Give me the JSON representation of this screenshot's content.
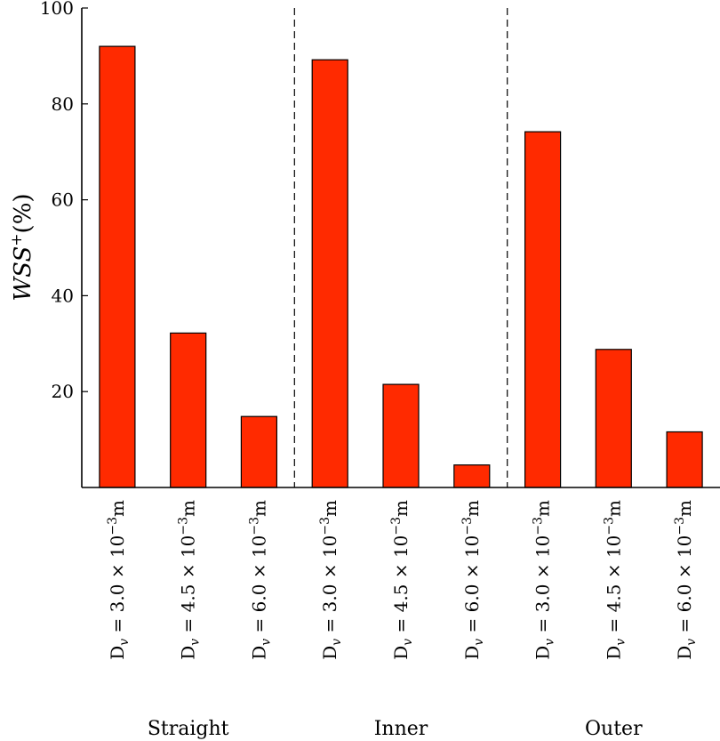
{
  "chart_data": {
    "type": "bar",
    "ylabel": "WSS",
    "ylabel_superscript": "+",
    "ylabel_unit": "(%)",
    "ylim": [
      0,
      100
    ],
    "yticks": [
      20,
      40,
      60,
      80,
      100
    ],
    "bar_color": "#ff2a00",
    "groups": [
      "Straight",
      "Inner",
      "Outer"
    ],
    "categories": [
      "Dv = 3.0 × 10−3m",
      "Dv = 4.5 × 10−3m",
      "Dv = 6.0 × 10−3m",
      "Dv = 3.0 × 10−3m",
      "Dv = 4.5 × 10−3m",
      "Dv = 6.0 × 10−3m",
      "Dv = 3.0 × 10−3m",
      "Dv = 4.5 × 10−3m",
      "Dv = 6.0 × 10−3m"
    ],
    "category_parts": [
      {
        "D": "D",
        "sub": "v",
        "rest": " = 3.0 × 10",
        "exp": "−3",
        "unit": "m"
      },
      {
        "D": "D",
        "sub": "v",
        "rest": " = 4.5 × 10",
        "exp": "−3",
        "unit": "m"
      },
      {
        "D": "D",
        "sub": "v",
        "rest": " = 6.0 × 10",
        "exp": "−3",
        "unit": "m"
      },
      {
        "D": "D",
        "sub": "v",
        "rest": " = 3.0 × 10",
        "exp": "−3",
        "unit": "m"
      },
      {
        "D": "D",
        "sub": "v",
        "rest": " = 4.5 × 10",
        "exp": "−3",
        "unit": "m"
      },
      {
        "D": "D",
        "sub": "v",
        "rest": " = 6.0 × 10",
        "exp": "−3",
        "unit": "m"
      },
      {
        "D": "D",
        "sub": "v",
        "rest": " = 3.0 × 10",
        "exp": "−3",
        "unit": "m"
      },
      {
        "D": "D",
        "sub": "v",
        "rest": " = 4.5 × 10",
        "exp": "−3",
        "unit": "m"
      },
      {
        "D": "D",
        "sub": "v",
        "rest": " = 6.0 × 10",
        "exp": "−3",
        "unit": "m"
      }
    ],
    "values": [
      92,
      32.2,
      14.8,
      89.2,
      21.5,
      4.7,
      74.2,
      28.8,
      11.6
    ],
    "grid": false
  }
}
